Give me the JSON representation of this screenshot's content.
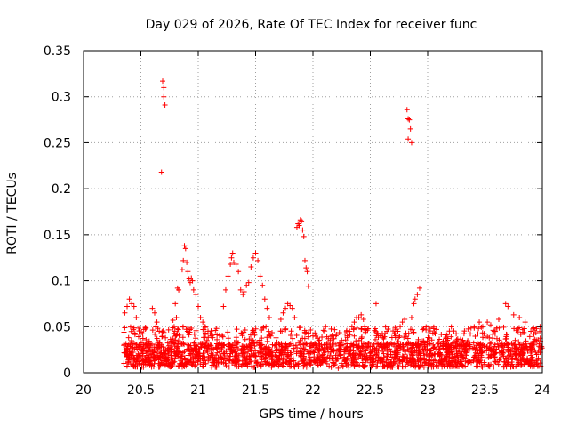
{
  "chart_data": {
    "type": "scatter",
    "title": "Day 029 of 2026, Rate Of TEC Index for receiver func",
    "xlabel": "GPS time / hours",
    "ylabel": "ROTI / TECUs",
    "xlim": [
      20,
      24
    ],
    "ylim": [
      0,
      0.35
    ],
    "x_ticks": [
      "20",
      "20.5",
      "21",
      "21.5",
      "22",
      "22.5",
      "23",
      "23.5",
      "24"
    ],
    "y_ticks": [
      "0",
      "0.05",
      "0.1",
      "0.15",
      "0.2",
      "0.25",
      "0.3",
      "0.35"
    ],
    "grid": true,
    "marker": "plus",
    "series": [
      {
        "name": "ROTI",
        "color": "#ff0000",
        "points": [
          [
            20.68,
            0.218
          ],
          [
            20.69,
            0.317
          ],
          [
            20.7,
            0.31
          ],
          [
            20.7,
            0.3
          ],
          [
            20.71,
            0.291
          ],
          [
            22.82,
            0.286
          ],
          [
            22.83,
            0.276
          ],
          [
            22.84,
            0.275
          ],
          [
            22.85,
            0.265
          ],
          [
            22.83,
            0.254
          ],
          [
            22.86,
            0.25
          ],
          [
            21.86,
            0.158
          ],
          [
            21.87,
            0.162
          ],
          [
            21.88,
            0.16
          ],
          [
            21.89,
            0.166
          ],
          [
            21.9,
            0.165
          ],
          [
            21.91,
            0.155
          ],
          [
            21.92,
            0.148
          ],
          [
            21.93,
            0.122
          ],
          [
            21.94,
            0.114
          ],
          [
            21.95,
            0.11
          ],
          [
            21.96,
            0.094
          ],
          [
            20.86,
            0.112
          ],
          [
            20.87,
            0.122
          ],
          [
            20.88,
            0.138
          ],
          [
            20.89,
            0.135
          ],
          [
            20.9,
            0.12
          ],
          [
            20.91,
            0.11
          ],
          [
            20.92,
            0.102
          ],
          [
            20.93,
            0.098
          ],
          [
            20.94,
            0.103
          ],
          [
            20.95,
            0.1
          ],
          [
            20.96,
            0.09
          ],
          [
            20.82,
            0.092
          ],
          [
            20.83,
            0.09
          ],
          [
            20.8,
            0.075
          ],
          [
            20.78,
            0.057
          ],
          [
            20.79,
            0.05
          ],
          [
            20.81,
            0.06
          ],
          [
            21.22,
            0.072
          ],
          [
            21.24,
            0.09
          ],
          [
            21.26,
            0.105
          ],
          [
            21.28,
            0.118
          ],
          [
            21.29,
            0.125
          ],
          [
            21.3,
            0.13
          ],
          [
            21.31,
            0.12
          ],
          [
            21.33,
            0.118
          ],
          [
            21.35,
            0.11
          ],
          [
            21.37,
            0.09
          ],
          [
            21.39,
            0.085
          ],
          [
            21.4,
            0.088
          ],
          [
            21.42,
            0.095
          ],
          [
            21.44,
            0.098
          ],
          [
            21.46,
            0.115
          ],
          [
            21.48,
            0.125
          ],
          [
            21.5,
            0.13
          ],
          [
            21.52,
            0.122
          ],
          [
            21.54,
            0.105
          ],
          [
            21.56,
            0.095
          ],
          [
            21.58,
            0.08
          ],
          [
            21.6,
            0.07
          ],
          [
            21.62,
            0.06
          ],
          [
            20.98,
            0.085
          ],
          [
            21.0,
            0.072
          ],
          [
            21.02,
            0.06
          ],
          [
            21.04,
            0.055
          ],
          [
            21.06,
            0.05
          ],
          [
            21.72,
            0.058
          ],
          [
            21.74,
            0.065
          ],
          [
            21.76,
            0.07
          ],
          [
            21.78,
            0.075
          ],
          [
            21.8,
            0.073
          ],
          [
            21.82,
            0.07
          ],
          [
            21.84,
            0.06
          ],
          [
            20.36,
            0.065
          ],
          [
            20.38,
            0.072
          ],
          [
            20.4,
            0.08
          ],
          [
            20.42,
            0.075
          ],
          [
            20.44,
            0.072
          ],
          [
            20.46,
            0.06
          ],
          [
            20.6,
            0.07
          ],
          [
            20.62,
            0.065
          ],
          [
            20.64,
            0.055
          ],
          [
            20.66,
            0.045
          ],
          [
            22.55,
            0.075
          ],
          [
            22.4,
            0.06
          ],
          [
            22.42,
            0.063
          ],
          [
            22.44,
            0.058
          ],
          [
            22.72,
            0.04
          ],
          [
            22.74,
            0.045
          ],
          [
            22.76,
            0.05
          ],
          [
            22.78,
            0.055
          ],
          [
            22.8,
            0.058
          ],
          [
            22.86,
            0.06
          ],
          [
            22.88,
            0.075
          ],
          [
            22.89,
            0.08
          ],
          [
            22.91,
            0.085
          ],
          [
            22.93,
            0.092
          ],
          [
            23.45,
            0.055
          ],
          [
            23.48,
            0.05
          ],
          [
            23.52,
            0.055
          ],
          [
            23.55,
            0.052
          ],
          [
            23.58,
            0.045
          ],
          [
            23.62,
            0.058
          ],
          [
            23.68,
            0.075
          ],
          [
            23.7,
            0.072
          ],
          [
            23.75,
            0.063
          ],
          [
            23.8,
            0.06
          ],
          [
            23.85,
            0.055
          ],
          [
            23.9,
            0.045
          ],
          [
            23.95,
            0.048
          ],
          [
            23.98,
            0.05
          ],
          [
            22.3,
            0.04
          ],
          [
            22.32,
            0.045
          ],
          [
            22.34,
            0.05
          ],
          [
            22.36,
            0.055
          ],
          [
            22.38,
            0.06
          ],
          [
            22.0,
            0.04
          ],
          [
            22.05,
            0.035
          ],
          [
            22.1,
            0.03
          ],
          [
            22.15,
            0.035
          ],
          [
            22.2,
            0.04
          ],
          [
            22.25,
            0.035
          ],
          [
            22.22,
            0.005
          ],
          [
            22.25,
            0.008
          ],
          [
            22.18,
            0.01
          ]
        ],
        "noise_band": {
          "x_start": 20.35,
          "x_end": 24.0,
          "y_base_range": [
            0.006,
            0.032
          ],
          "y_upper_range": [
            0.03,
            0.05
          ],
          "count": 2200
        }
      }
    ]
  }
}
